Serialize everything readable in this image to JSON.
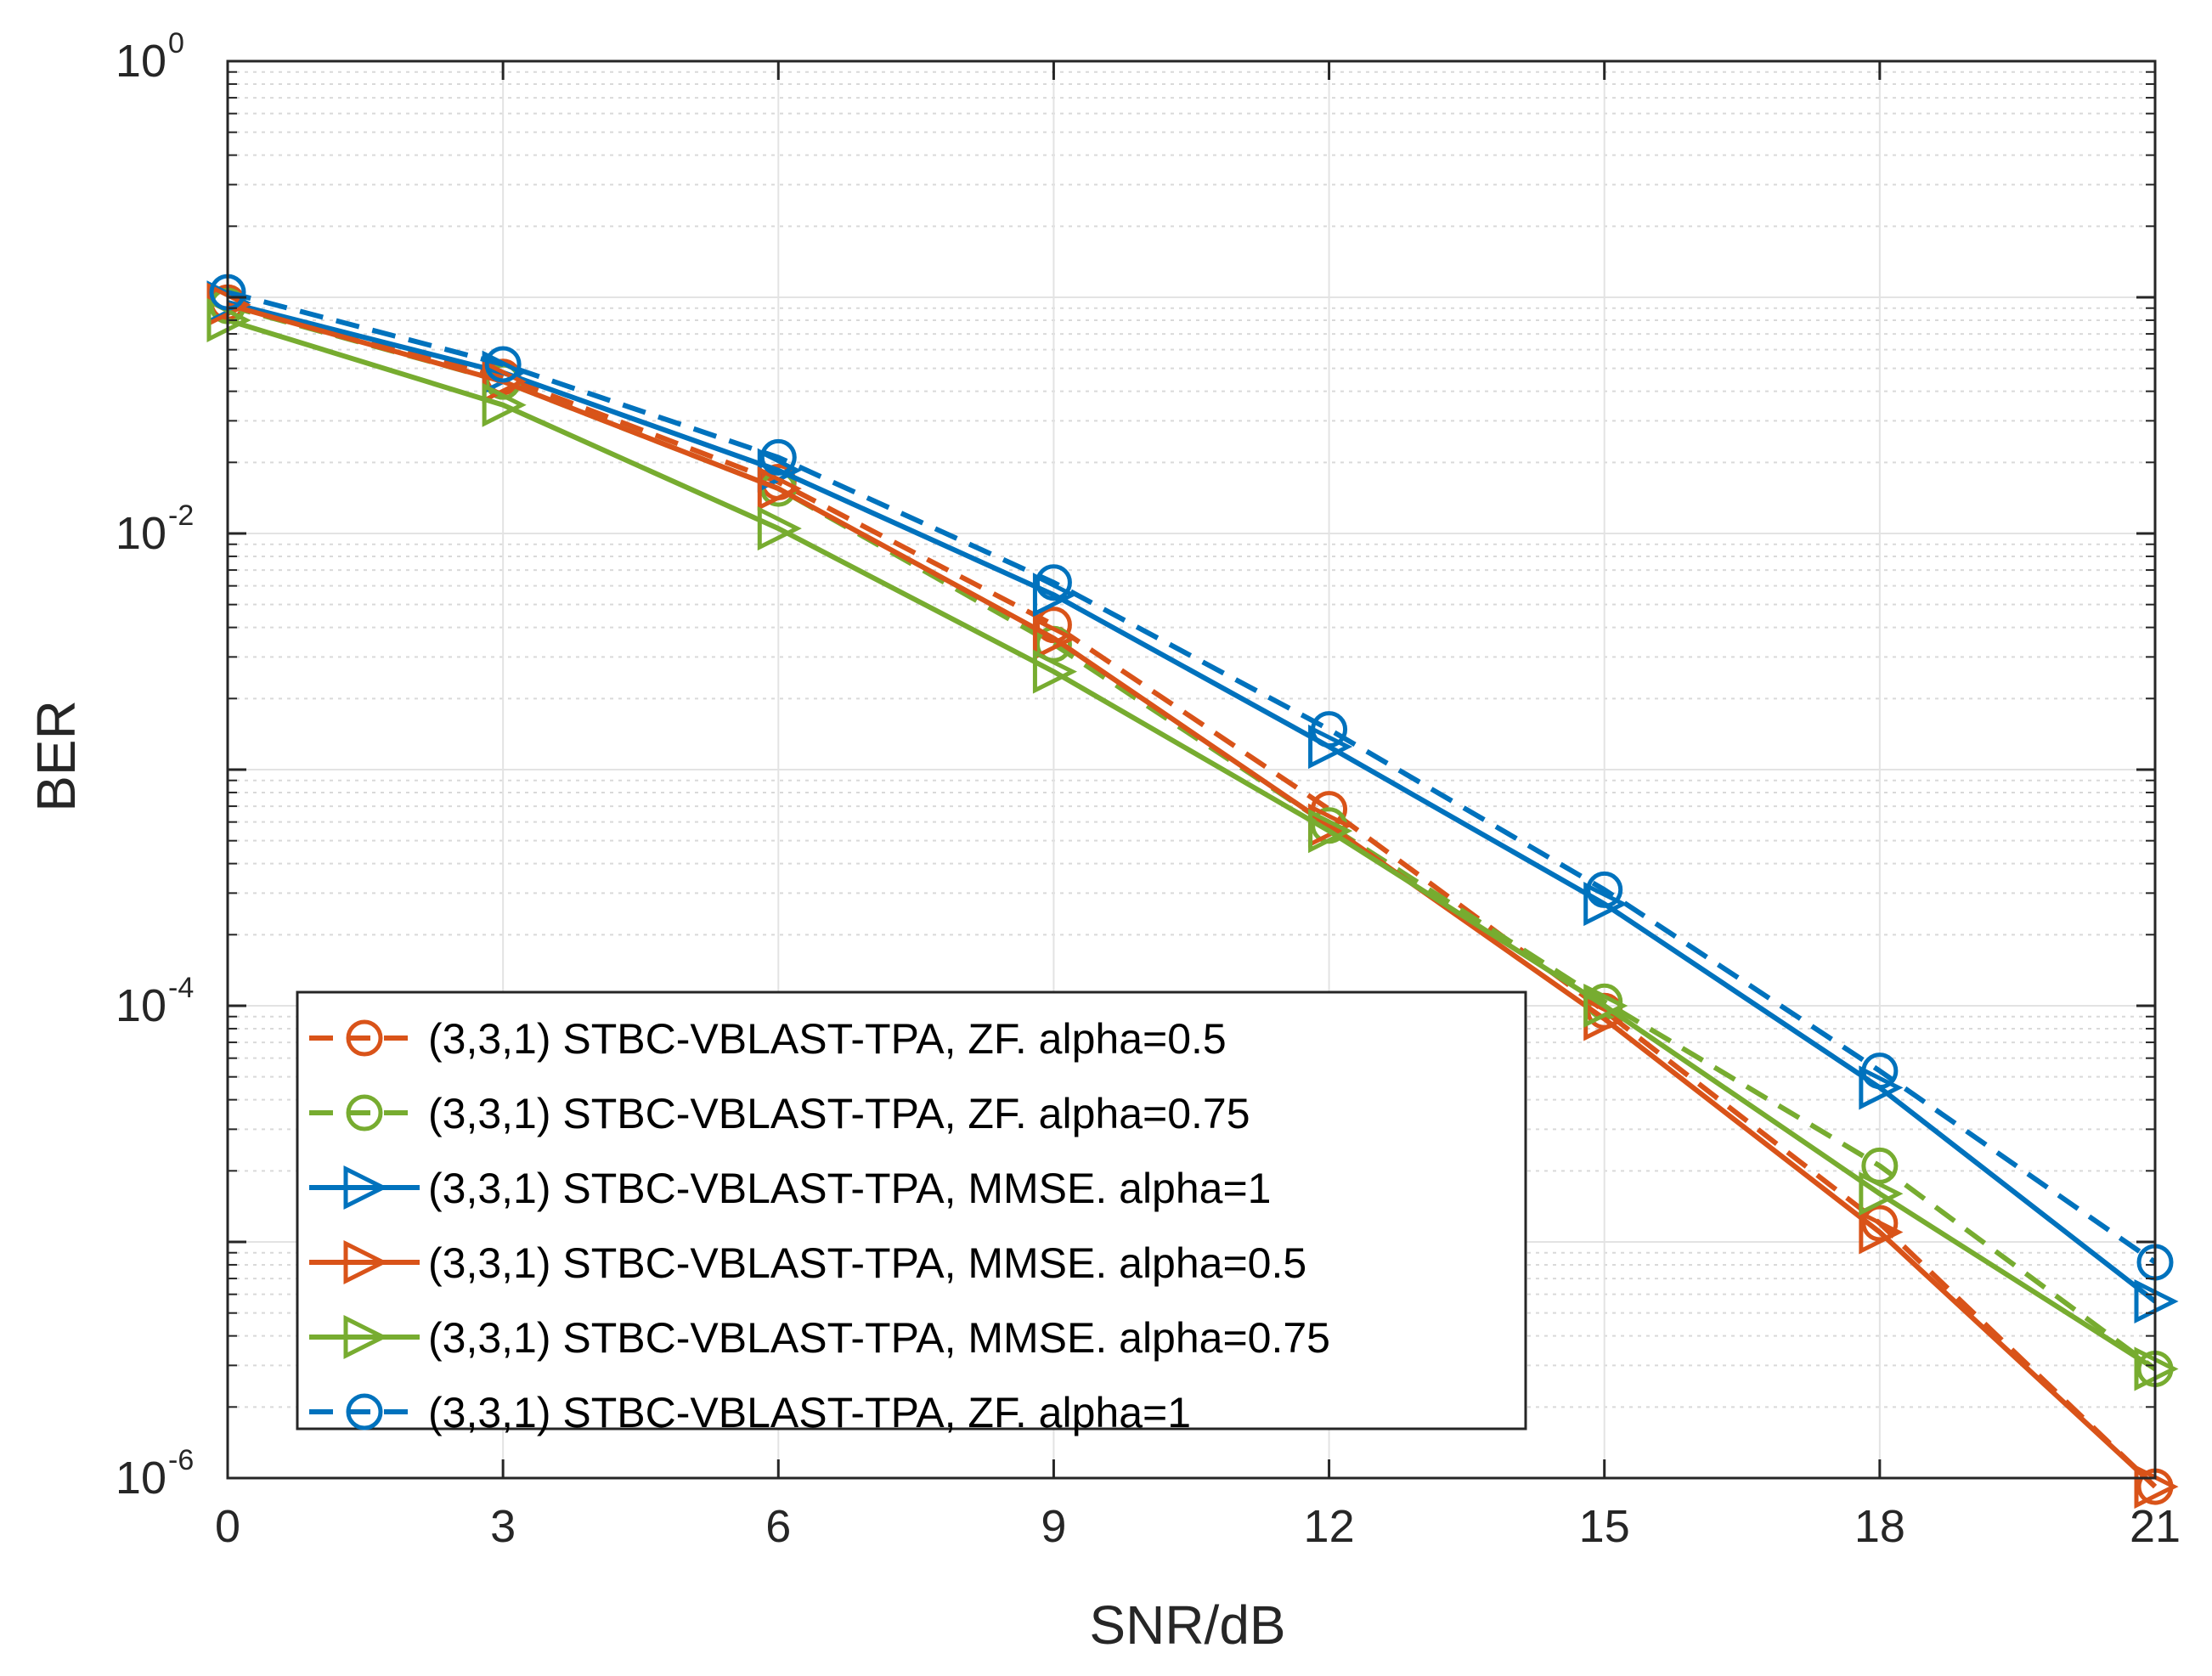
{
  "chart_data": {
    "type": "line",
    "title": "",
    "xlabel": "SNR/dB",
    "ylabel": "BER",
    "yscale": "log",
    "xlim": [
      0,
      21
    ],
    "ylim": [
      8e-07,
      1
    ],
    "grid": true,
    "legend_position": "bottom-left",
    "x_ticks": [
      0,
      3,
      6,
      9,
      12,
      15,
      18,
      21
    ],
    "x_tick_labels": [
      "0",
      "3",
      "6",
      "9",
      "12",
      "15",
      "18",
      "21"
    ],
    "y_ticks": [
      {
        "base": "10",
        "exp": "0",
        "value": 1
      },
      {
        "base": "10",
        "exp": "-2",
        "value": 0.01
      },
      {
        "base": "10",
        "exp": "-4",
        "value": 0.0001
      },
      {
        "base": "10",
        "exp": "-6",
        "value": 1e-06
      }
    ],
    "x": [
      0,
      3,
      6,
      9,
      12,
      15,
      18,
      21
    ],
    "series": [
      {
        "name": "(3,3,1) STBC-VBLAST-TPA, ZF. alpha=0.5",
        "color": "#D95319",
        "dash": "dashed",
        "marker": "circle",
        "values": [
          0.095,
          0.046,
          0.0165,
          0.0041,
          0.00068,
          9.5e-05,
          1.2e-05,
          9.2e-07
        ]
      },
      {
        "name": "(3,3,1) STBC-VBLAST-TPA, ZF. alpha=0.75",
        "color": "#77AC30",
        "dash": "dashed",
        "marker": "circle",
        "values": [
          0.092,
          0.044,
          0.0155,
          0.0034,
          0.00058,
          0.000104,
          2.1e-05,
          2.9e-06
        ]
      },
      {
        "name": "(3,3,1) STBC-VBLAST-TPA, MMSE. alpha=1",
        "color": "#0072BD",
        "dash": "solid",
        "marker": "triangle-right",
        "values": [
          0.095,
          0.048,
          0.0185,
          0.0055,
          0.00125,
          0.00027,
          4.5e-05,
          5.6e-06
        ]
      },
      {
        "name": "(3,3,1) STBC-VBLAST-TPA, MMSE. alpha=0.5",
        "color": "#D95319",
        "dash": "solid",
        "marker": "triangle-right",
        "values": [
          0.093,
          0.044,
          0.0155,
          0.0036,
          0.00058,
          8.8e-05,
          1.1e-05,
          9.2e-07
        ]
      },
      {
        "name": "(3,3,1) STBC-VBLAST-TPA, MMSE. alpha=0.75",
        "color": "#77AC30",
        "dash": "solid",
        "marker": "triangle-right",
        "values": [
          0.08,
          0.035,
          0.0105,
          0.0026,
          0.00055,
          0.0001,
          1.6e-05,
          2.9e-06
        ]
      },
      {
        "name": "(3,3,1) STBC-VBLAST-TPA, ZF. alpha=1",
        "color": "#0072BD",
        "dash": "dashed",
        "marker": "circle",
        "values": [
          0.105,
          0.052,
          0.021,
          0.0062,
          0.00148,
          0.00031,
          5.3e-05,
          8.2e-06
        ]
      }
    ]
  }
}
